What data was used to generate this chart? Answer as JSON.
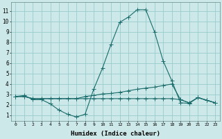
{
  "xlabel": "Humidex (Indice chaleur)",
  "bg_color": "#cce8e8",
  "grid_color": "#99cccc",
  "line_color": "#1a6b6b",
  "x_ticks": [
    0,
    1,
    2,
    3,
    4,
    5,
    6,
    7,
    8,
    9,
    10,
    11,
    12,
    13,
    14,
    15,
    16,
    17,
    18,
    19,
    20,
    21,
    22,
    23
  ],
  "y_ticks": [
    1,
    2,
    3,
    4,
    5,
    6,
    7,
    8,
    9,
    10,
    11
  ],
  "xlim": [
    -0.5,
    23.5
  ],
  "ylim": [
    0.5,
    11.8
  ],
  "line1_x": [
    0,
    1,
    2,
    3,
    4,
    5,
    6,
    7,
    8,
    9,
    10,
    11,
    12,
    13,
    14,
    15,
    16,
    17,
    18,
    19,
    20,
    21,
    22,
    23
  ],
  "line1_y": [
    2.8,
    2.9,
    2.5,
    2.5,
    2.1,
    1.5,
    1.1,
    0.85,
    1.1,
    3.5,
    5.5,
    7.8,
    9.9,
    10.4,
    11.1,
    11.1,
    9.0,
    6.2,
    4.3,
    2.2,
    2.15,
    2.7,
    2.45,
    2.2
  ],
  "line2_x": [
    0,
    1,
    2,
    3,
    4,
    5,
    6,
    7,
    8,
    9,
    10,
    11,
    12,
    13,
    14,
    15,
    16,
    17,
    18,
    19,
    20,
    21,
    22,
    23
  ],
  "line2_y": [
    2.8,
    2.8,
    2.6,
    2.6,
    2.6,
    2.6,
    2.6,
    2.6,
    2.8,
    2.9,
    3.05,
    3.1,
    3.2,
    3.35,
    3.5,
    3.6,
    3.7,
    3.85,
    4.0,
    2.5,
    2.2,
    2.7,
    2.45,
    2.2
  ],
  "line3_x": [
    0,
    1,
    2,
    3,
    4,
    5,
    6,
    7,
    8,
    9,
    10,
    11,
    12,
    13,
    14,
    15,
    16,
    17,
    18,
    19,
    20,
    21,
    22,
    23
  ],
  "line3_y": [
    2.8,
    2.8,
    2.6,
    2.6,
    2.6,
    2.6,
    2.6,
    2.6,
    2.6,
    2.6,
    2.6,
    2.6,
    2.6,
    2.6,
    2.6,
    2.6,
    2.6,
    2.6,
    2.6,
    2.5,
    2.2,
    2.7,
    2.45,
    2.2
  ]
}
